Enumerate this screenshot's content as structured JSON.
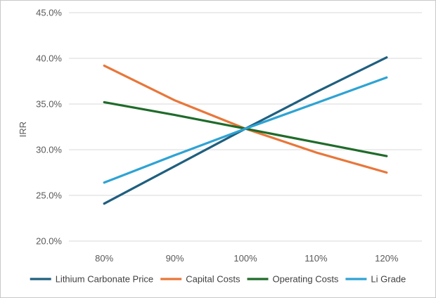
{
  "chart_data": {
    "type": "line",
    "title": "",
    "xlabel": "",
    "ylabel": "IRR",
    "categories": [
      "80%",
      "90%",
      "100%",
      "110%",
      "120%"
    ],
    "ylim": [
      0.2,
      0.45
    ],
    "yticks": [
      0.2,
      0.25,
      0.3,
      0.35,
      0.4,
      0.45
    ],
    "ytick_labels": [
      "20.0%",
      "25.0%",
      "30.0%",
      "35.0%",
      "40.0%",
      "45.0%"
    ],
    "grid": "horizontal",
    "legend": "bottom",
    "series": [
      {
        "name": "Lithium Carbonate Price",
        "color": "#1f5f7f",
        "values": [
          0.241,
          0.282,
          0.323,
          0.363,
          0.401
        ]
      },
      {
        "name": "Capital Costs",
        "color": "#e8773a",
        "values": [
          0.392,
          0.354,
          0.323,
          0.297,
          0.275
        ]
      },
      {
        "name": "Operating Costs",
        "color": "#1f6b2a",
        "values": [
          0.352,
          0.338,
          0.323,
          0.308,
          0.293
        ]
      },
      {
        "name": "Li Grade",
        "color": "#2ea3d3",
        "values": [
          0.264,
          0.294,
          0.323,
          0.351,
          0.379
        ]
      }
    ]
  }
}
